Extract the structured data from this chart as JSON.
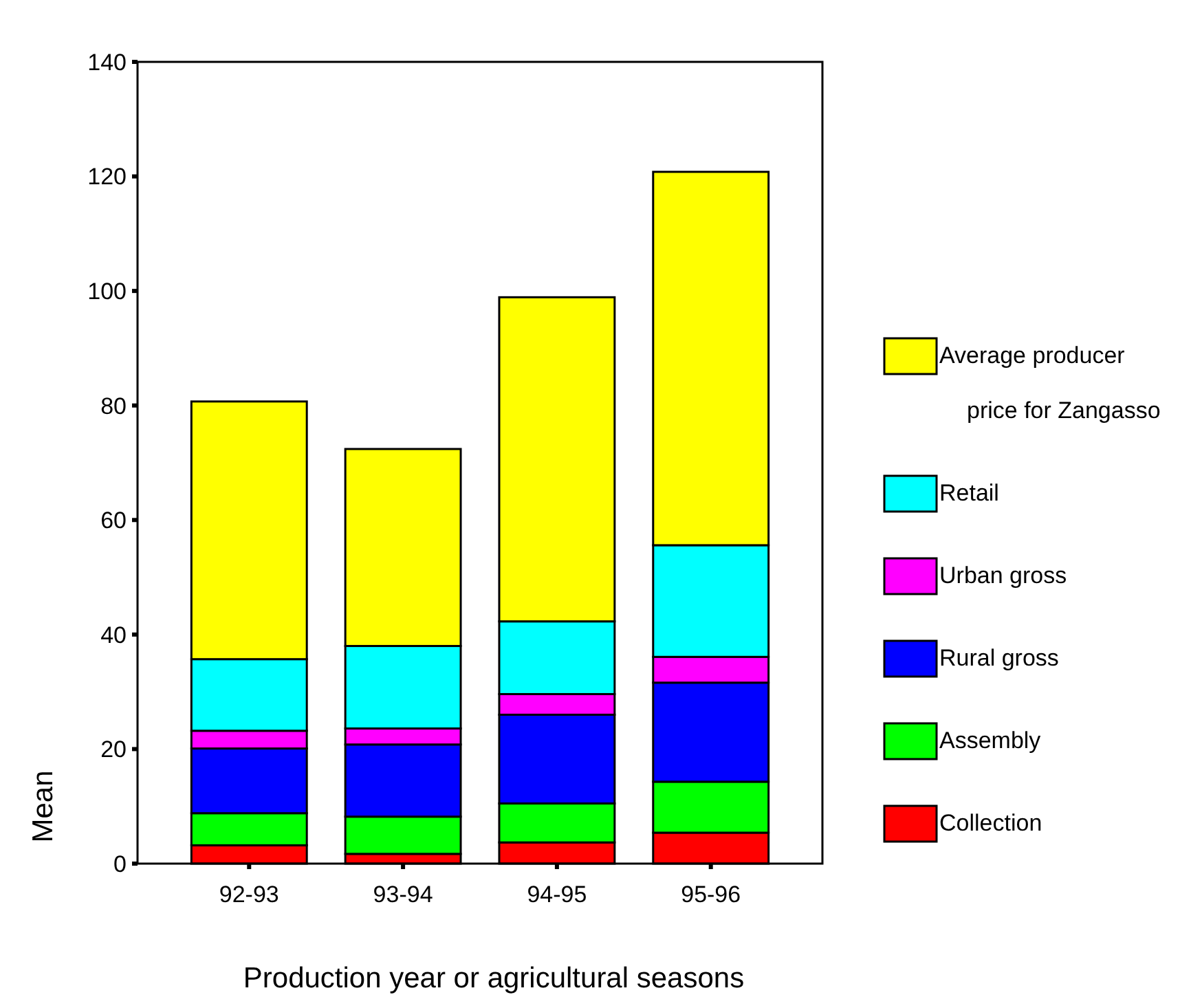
{
  "chart_data": {
    "type": "bar",
    "stacked": true,
    "xlabel": "Production year or agricultural seasons",
    "ylabel": "Mean",
    "categories": [
      "92-93",
      "93-94",
      "94-95",
      "95-96"
    ],
    "ylim": [
      0,
      140
    ],
    "yticks": [
      0,
      20,
      40,
      60,
      80,
      100,
      120,
      140
    ],
    "legend": "right",
    "series": [
      {
        "name": "Collection",
        "color": "#ff0000",
        "values": [
          3.2,
          1.7,
          3.7,
          5.4
        ]
      },
      {
        "name": "Assembly",
        "color": "#00ff00",
        "values": [
          5.6,
          6.5,
          6.8,
          8.9
        ]
      },
      {
        "name": "Rural gross",
        "color": "#0000ff",
        "values": [
          11.3,
          12.6,
          15.5,
          17.3
        ]
      },
      {
        "name": "Urban gross",
        "color": "#ff00ff",
        "values": [
          3.1,
          2.8,
          3.6,
          4.5
        ]
      },
      {
        "name": "Retail",
        "color": "#00ffff",
        "values": [
          12.5,
          14.4,
          12.7,
          19.5
        ]
      },
      {
        "name": "Average producer price for Zangasso",
        "color": "#ffff00",
        "values": [
          45.0,
          34.4,
          56.6,
          65.2
        ]
      }
    ]
  }
}
